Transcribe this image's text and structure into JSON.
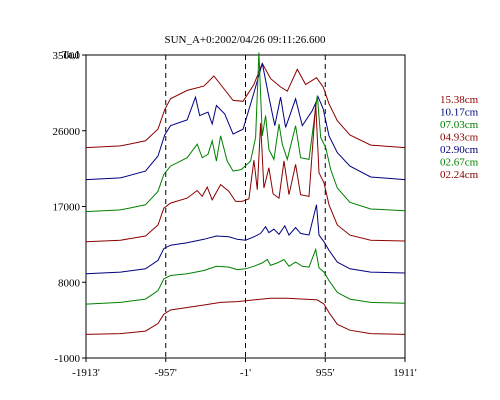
{
  "chart_data": {
    "type": "line",
    "title": "SUN_A+0:2002/04/26 09:11:26.600",
    "ylabel": "Ta,I",
    "xlabel": "",
    "xlim": [
      -1913,
      1911
    ],
    "ylim": [
      -1000,
      35000
    ],
    "x_ticks": [
      {
        "value": -1913,
        "label": "-1913'"
      },
      {
        "value": -957,
        "label": "-957'"
      },
      {
        "value": -1,
        "label": "-1'"
      },
      {
        "value": 955,
        "label": "955'"
      },
      {
        "value": 1911,
        "label": "1911'"
      }
    ],
    "y_ticks": [
      {
        "value": 35000,
        "label": "35000"
      },
      {
        "value": 26000,
        "label": "26000"
      },
      {
        "value": 17000,
        "label": "17000"
      },
      {
        "value": 8000,
        "label": "8000"
      },
      {
        "value": -1000,
        "label": "-1000"
      }
    ],
    "vlines": [
      -957,
      -1,
      955
    ],
    "legend_position": "right",
    "series": [
      {
        "name": "15.38cm",
        "color": "#8b0000",
        "points": [
          [
            -1913,
            24000
          ],
          [
            -1500,
            24200
          ],
          [
            -1200,
            24800
          ],
          [
            -1050,
            26200
          ],
          [
            -970,
            28500
          ],
          [
            -900,
            29800
          ],
          [
            -700,
            30800
          ],
          [
            -500,
            31300
          ],
          [
            -380,
            32500
          ],
          [
            -300,
            31500
          ],
          [
            -150,
            29600
          ],
          [
            -30,
            29500
          ],
          [
            100,
            31500
          ],
          [
            200,
            34000
          ],
          [
            300,
            32200
          ],
          [
            420,
            31200
          ],
          [
            500,
            30700
          ],
          [
            620,
            33300
          ],
          [
            720,
            31500
          ],
          [
            850,
            32300
          ],
          [
            930,
            31200
          ],
          [
            1000,
            29200
          ],
          [
            1100,
            27200
          ],
          [
            1250,
            25500
          ],
          [
            1500,
            24300
          ],
          [
            1911,
            24000
          ]
        ]
      },
      {
        "name": "10.17cm",
        "color": "#000080",
        "points": [
          [
            -1913,
            20200
          ],
          [
            -1500,
            20400
          ],
          [
            -1200,
            21200
          ],
          [
            -1050,
            23000
          ],
          [
            -970,
            25500
          ],
          [
            -900,
            26600
          ],
          [
            -700,
            27300
          ],
          [
            -600,
            30000
          ],
          [
            -550,
            27800
          ],
          [
            -450,
            28200
          ],
          [
            -400,
            26800
          ],
          [
            -350,
            29000
          ],
          [
            -250,
            28000
          ],
          [
            -150,
            25600
          ],
          [
            -30,
            26200
          ],
          [
            100,
            30500
          ],
          [
            200,
            34000
          ],
          [
            280,
            30000
          ],
          [
            350,
            26600
          ],
          [
            420,
            30000
          ],
          [
            480,
            26400
          ],
          [
            600,
            29800
          ],
          [
            680,
            26600
          ],
          [
            800,
            28400
          ],
          [
            870,
            30000
          ],
          [
            930,
            28600
          ],
          [
            1000,
            25400
          ],
          [
            1100,
            23400
          ],
          [
            1250,
            21800
          ],
          [
            1500,
            20500
          ],
          [
            1911,
            20200
          ]
        ]
      },
      {
        "name": "07.03cm",
        "color": "#008000",
        "points": [
          [
            -1913,
            16400
          ],
          [
            -1500,
            16600
          ],
          [
            -1200,
            17200
          ],
          [
            -1050,
            18800
          ],
          [
            -980,
            20800
          ],
          [
            -900,
            21800
          ],
          [
            -700,
            22800
          ],
          [
            -580,
            24400
          ],
          [
            -520,
            22800
          ],
          [
            -450,
            23200
          ],
          [
            -400,
            24800
          ],
          [
            -350,
            22400
          ],
          [
            -300,
            25400
          ],
          [
            -220,
            22400
          ],
          [
            -150,
            21200
          ],
          [
            -50,
            21400
          ],
          [
            60,
            22400
          ],
          [
            120,
            25200
          ],
          [
            160,
            35300
          ],
          [
            200,
            25400
          ],
          [
            240,
            27800
          ],
          [
            280,
            23800
          ],
          [
            340,
            22600
          ],
          [
            400,
            26800
          ],
          [
            440,
            24400
          ],
          [
            500,
            22600
          ],
          [
            600,
            26600
          ],
          [
            660,
            22800
          ],
          [
            760,
            22600
          ],
          [
            860,
            30200
          ],
          [
            900,
            25200
          ],
          [
            960,
            24000
          ],
          [
            1020,
            21400
          ],
          [
            1100,
            19200
          ],
          [
            1250,
            17500
          ],
          [
            1500,
            16700
          ],
          [
            1911,
            16500
          ]
        ]
      },
      {
        "name": "04.93cm",
        "color": "#8b0000",
        "points": [
          [
            -1913,
            12800
          ],
          [
            -1500,
            13000
          ],
          [
            -1200,
            13500
          ],
          [
            -1050,
            14800
          ],
          [
            -980,
            16800
          ],
          [
            -900,
            17400
          ],
          [
            -700,
            18000
          ],
          [
            -580,
            18900
          ],
          [
            -520,
            18200
          ],
          [
            -460,
            19300
          ],
          [
            -400,
            17800
          ],
          [
            -300,
            19600
          ],
          [
            -200,
            18800
          ],
          [
            -120,
            17600
          ],
          [
            -40,
            17600
          ],
          [
            40,
            17900
          ],
          [
            100,
            22500
          ],
          [
            140,
            19000
          ],
          [
            180,
            26900
          ],
          [
            220,
            19200
          ],
          [
            280,
            21600
          ],
          [
            330,
            18500
          ],
          [
            400,
            18000
          ],
          [
            460,
            22400
          ],
          [
            520,
            18400
          ],
          [
            600,
            22000
          ],
          [
            660,
            18400
          ],
          [
            760,
            18200
          ],
          [
            840,
            29200
          ],
          [
            880,
            21000
          ],
          [
            940,
            19800
          ],
          [
            1000,
            17200
          ],
          [
            1100,
            14800
          ],
          [
            1250,
            13600
          ],
          [
            1500,
            13000
          ],
          [
            1911,
            12900
          ]
        ]
      },
      {
        "name": "02.90cm",
        "color": "#000080",
        "points": [
          [
            -1913,
            9000
          ],
          [
            -1500,
            9200
          ],
          [
            -1200,
            9600
          ],
          [
            -1050,
            10600
          ],
          [
            -980,
            12000
          ],
          [
            -900,
            12400
          ],
          [
            -700,
            12700
          ],
          [
            -500,
            13100
          ],
          [
            -350,
            13500
          ],
          [
            -200,
            13400
          ],
          [
            -100,
            13100
          ],
          [
            0,
            13000
          ],
          [
            100,
            13400
          ],
          [
            180,
            13800
          ],
          [
            240,
            14600
          ],
          [
            280,
            13900
          ],
          [
            340,
            14300
          ],
          [
            400,
            13700
          ],
          [
            470,
            14700
          ],
          [
            520,
            13600
          ],
          [
            600,
            14500
          ],
          [
            660,
            13800
          ],
          [
            760,
            13600
          ],
          [
            850,
            17200
          ],
          [
            880,
            13600
          ],
          [
            940,
            12800
          ],
          [
            1000,
            11800
          ],
          [
            1100,
            10400
          ],
          [
            1250,
            9600
          ],
          [
            1500,
            9200
          ],
          [
            1911,
            9100
          ]
        ]
      },
      {
        "name": "02.67cm",
        "color": "#008000",
        "points": [
          [
            -1913,
            5400
          ],
          [
            -1500,
            5600
          ],
          [
            -1200,
            6000
          ],
          [
            -1050,
            7000
          ],
          [
            -980,
            8400
          ],
          [
            -900,
            8800
          ],
          [
            -700,
            9000
          ],
          [
            -500,
            9400
          ],
          [
            -350,
            9900
          ],
          [
            -200,
            9800
          ],
          [
            -100,
            9500
          ],
          [
            0,
            9600
          ],
          [
            100,
            9900
          ],
          [
            200,
            10300
          ],
          [
            260,
            10700
          ],
          [
            300,
            10000
          ],
          [
            380,
            10300
          ],
          [
            460,
            10700
          ],
          [
            520,
            9900
          ],
          [
            600,
            10400
          ],
          [
            680,
            9900
          ],
          [
            760,
            9800
          ],
          [
            840,
            11900
          ],
          [
            880,
            9700
          ],
          [
            940,
            9200
          ],
          [
            1000,
            8200
          ],
          [
            1100,
            6800
          ],
          [
            1250,
            6000
          ],
          [
            1500,
            5600
          ],
          [
            1911,
            5500
          ]
        ]
      },
      {
        "name": "02.24cm",
        "color": "#8b0000",
        "points": [
          [
            -1913,
            1800
          ],
          [
            -1500,
            1900
          ],
          [
            -1200,
            2200
          ],
          [
            -1050,
            3100
          ],
          [
            -980,
            4200
          ],
          [
            -900,
            4700
          ],
          [
            -700,
            5000
          ],
          [
            -500,
            5300
          ],
          [
            -300,
            5600
          ],
          [
            -100,
            5700
          ],
          [
            100,
            5900
          ],
          [
            300,
            6100
          ],
          [
            500,
            6100
          ],
          [
            700,
            6000
          ],
          [
            860,
            5900
          ],
          [
            940,
            5400
          ],
          [
            1000,
            4400
          ],
          [
            1100,
            3000
          ],
          [
            1250,
            2300
          ],
          [
            1500,
            1900
          ],
          [
            1911,
            1800
          ]
        ]
      }
    ]
  }
}
